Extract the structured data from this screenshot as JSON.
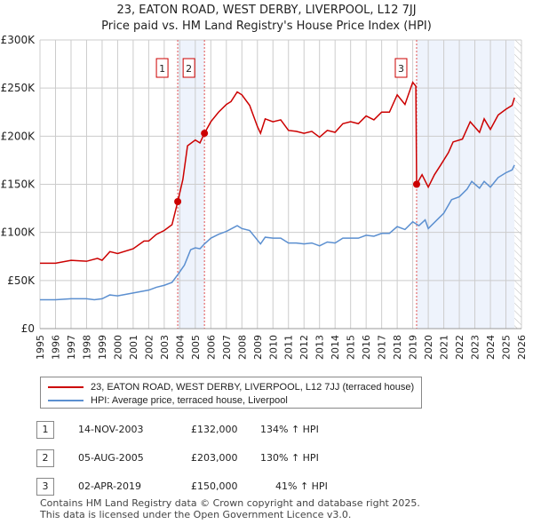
{
  "title": "23, EATON ROAD, WEST DERBY, LIVERPOOL, L12 7JJ",
  "subtitle": "Price paid vs. HM Land Registry's House Price Index (HPI)",
  "chart_data": {
    "type": "line",
    "title": "23, EATON ROAD, WEST DERBY, LIVERPOOL, L12 7JJ",
    "subtitle": "Price paid vs. HM Land Registry's House Price Index (HPI)",
    "xlim": [
      1995,
      2026
    ],
    "ylim": [
      0,
      300000
    ],
    "x_ticks": [
      "1995",
      "1996",
      "1997",
      "1998",
      "1999",
      "2000",
      "2001",
      "2002",
      "2003",
      "2004",
      "2005",
      "2006",
      "2007",
      "2008",
      "2009",
      "2010",
      "2011",
      "2012",
      "2013",
      "2014",
      "2015",
      "2016",
      "2017",
      "2018",
      "2019",
      "2020",
      "2021",
      "2022",
      "2023",
      "2024",
      "2025",
      "2026"
    ],
    "y_ticks": [
      {
        "v": 0,
        "label": "£0"
      },
      {
        "v": 50000,
        "label": "£50K"
      },
      {
        "v": 100000,
        "label": "£100K"
      },
      {
        "v": 150000,
        "label": "£150K"
      },
      {
        "v": 200000,
        "label": "£200K"
      },
      {
        "v": 250000,
        "label": "£250K"
      },
      {
        "v": 300000,
        "label": "£300K"
      }
    ],
    "grid": true,
    "shaded_periods": [
      [
        2003.87,
        2005.59
      ],
      [
        2019.25,
        2025.55
      ]
    ],
    "forecast_hatch_from": 2025.55,
    "series": [
      {
        "name": "23, EATON ROAD, WEST DERBY, LIVERPOOL, L12 7JJ (terraced house)",
        "color": "#cc0000",
        "points": [
          [
            1995,
            68000
          ],
          [
            1996,
            68000
          ],
          [
            1997,
            71000
          ],
          [
            1998,
            70000
          ],
          [
            1998.7,
            73000
          ],
          [
            1999,
            71000
          ],
          [
            1999.5,
            80000
          ],
          [
            2000,
            78000
          ],
          [
            2001,
            83000
          ],
          [
            2001.7,
            91000
          ],
          [
            2002,
            91000
          ],
          [
            2002.5,
            98000
          ],
          [
            2003,
            102000
          ],
          [
            2003.5,
            108000
          ],
          [
            2003.87,
            132000
          ],
          [
            2004.2,
            155000
          ],
          [
            2004.5,
            190000
          ],
          [
            2005,
            196000
          ],
          [
            2005.3,
            193000
          ],
          [
            2005.59,
            203000
          ],
          [
            2006,
            215000
          ],
          [
            2006.5,
            225000
          ],
          [
            2007,
            233000
          ],
          [
            2007.3,
            236000
          ],
          [
            2007.7,
            246000
          ],
          [
            2008,
            243000
          ],
          [
            2008.5,
            232000
          ],
          [
            2009,
            210000
          ],
          [
            2009.2,
            203000
          ],
          [
            2009.5,
            218000
          ],
          [
            2010,
            215000
          ],
          [
            2010.5,
            217000
          ],
          [
            2011,
            206000
          ],
          [
            2011.5,
            205000
          ],
          [
            2012,
            203000
          ],
          [
            2012.5,
            205000
          ],
          [
            2013,
            199000
          ],
          [
            2013.5,
            206000
          ],
          [
            2014,
            204000
          ],
          [
            2014.5,
            213000
          ],
          [
            2015,
            215000
          ],
          [
            2015.5,
            213000
          ],
          [
            2016,
            221000
          ],
          [
            2016.5,
            217000
          ],
          [
            2017,
            225000
          ],
          [
            2017.5,
            225000
          ],
          [
            2018,
            243000
          ],
          [
            2018.5,
            233000
          ],
          [
            2019,
            256000
          ],
          [
            2019.2,
            252000
          ],
          [
            2019.25,
            150000
          ],
          [
            2019.6,
            160000
          ],
          [
            2020,
            147000
          ],
          [
            2020.4,
            160000
          ],
          [
            2020.8,
            170000
          ],
          [
            2021.3,
            183000
          ],
          [
            2021.6,
            194000
          ],
          [
            2022.2,
            197000
          ],
          [
            2022.7,
            215000
          ],
          [
            2023.3,
            204000
          ],
          [
            2023.6,
            218000
          ],
          [
            2024,
            207000
          ],
          [
            2024.5,
            222000
          ],
          [
            2025,
            228000
          ],
          [
            2025.4,
            232000
          ],
          [
            2025.55,
            240000
          ]
        ]
      },
      {
        "name": "HPI: Average price, terraced house, Liverpool",
        "color": "#5b8fd0",
        "points": [
          [
            1995,
            30000
          ],
          [
            1996,
            30000
          ],
          [
            1997,
            31000
          ],
          [
            1998,
            31000
          ],
          [
            1998.5,
            30000
          ],
          [
            1999,
            31000
          ],
          [
            1999.5,
            35000
          ],
          [
            2000,
            34000
          ],
          [
            2001,
            37000
          ],
          [
            2002,
            40000
          ],
          [
            2002.5,
            43000
          ],
          [
            2003,
            45000
          ],
          [
            2003.5,
            48000
          ],
          [
            2003.87,
            56000
          ],
          [
            2004.3,
            66000
          ],
          [
            2004.7,
            82000
          ],
          [
            2005,
            84000
          ],
          [
            2005.3,
            83000
          ],
          [
            2005.59,
            88000
          ],
          [
            2006,
            94000
          ],
          [
            2006.5,
            98000
          ],
          [
            2007,
            101000
          ],
          [
            2007.7,
            107000
          ],
          [
            2008,
            104000
          ],
          [
            2008.5,
            102000
          ],
          [
            2009,
            92000
          ],
          [
            2009.2,
            88000
          ],
          [
            2009.5,
            95000
          ],
          [
            2010,
            94000
          ],
          [
            2010.5,
            94000
          ],
          [
            2011,
            89000
          ],
          [
            2011.5,
            89000
          ],
          [
            2012,
            88000
          ],
          [
            2012.5,
            89000
          ],
          [
            2013,
            86000
          ],
          [
            2013.5,
            90000
          ],
          [
            2014,
            89000
          ],
          [
            2014.5,
            94000
          ],
          [
            2015,
            94000
          ],
          [
            2015.5,
            94000
          ],
          [
            2016,
            97000
          ],
          [
            2016.5,
            96000
          ],
          [
            2017,
            99000
          ],
          [
            2017.5,
            99000
          ],
          [
            2018,
            106000
          ],
          [
            2018.5,
            103000
          ],
          [
            2019,
            111000
          ],
          [
            2019.4,
            107000
          ],
          [
            2019.8,
            113000
          ],
          [
            2020,
            104000
          ],
          [
            2020.5,
            112000
          ],
          [
            2021,
            120000
          ],
          [
            2021.5,
            134000
          ],
          [
            2022,
            137000
          ],
          [
            2022.5,
            145000
          ],
          [
            2022.8,
            153000
          ],
          [
            2023.3,
            146000
          ],
          [
            2023.6,
            153000
          ],
          [
            2024,
            147000
          ],
          [
            2024.5,
            157000
          ],
          [
            2025,
            162000
          ],
          [
            2025.4,
            165000
          ],
          [
            2025.55,
            170000
          ]
        ]
      }
    ],
    "sales": [
      {
        "n": "1",
        "x": 2003.87,
        "y": 132000
      },
      {
        "n": "2",
        "x": 2005.59,
        "y": 203000
      },
      {
        "n": "3",
        "x": 2019.25,
        "y": 150000
      }
    ]
  },
  "legend": {
    "red": "23, EATON ROAD, WEST DERBY, LIVERPOOL, L12 7JJ (terraced house)",
    "blue": "HPI: Average price, terraced house, Liverpool"
  },
  "table": [
    {
      "n": "1",
      "date": "14-NOV-2003",
      "price": "£132,000",
      "hpi": "134% ↑ HPI"
    },
    {
      "n": "2",
      "date": "05-AUG-2005",
      "price": "£203,000",
      "hpi": "130% ↑ HPI"
    },
    {
      "n": "3",
      "date": "02-APR-2019",
      "price": "£150,000",
      "hpi": "41% ↑ HPI"
    }
  ],
  "footer": {
    "line1": "Contains HM Land Registry data © Crown copyright and database right 2025.",
    "line2": "This data is licensed under the Open Government Licence v3.0."
  }
}
